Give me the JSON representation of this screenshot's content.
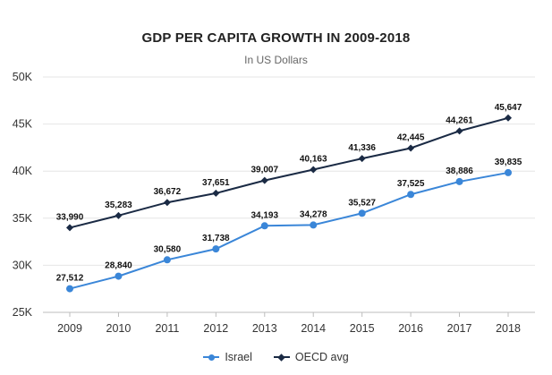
{
  "chart_data": {
    "type": "line",
    "title": "GDP PER CAPITA GROWTH IN 2009-2018",
    "subtitle": "In US Dollars",
    "xlabel": "",
    "ylabel": "",
    "categories": [
      "2009",
      "2010",
      "2011",
      "2012",
      "2013",
      "2014",
      "2015",
      "2016",
      "2017",
      "2018"
    ],
    "ylim": [
      25000,
      50000
    ],
    "yticks": [
      25000,
      30000,
      35000,
      40000,
      45000,
      50000
    ],
    "ytick_labels": [
      "25K",
      "30K",
      "35K",
      "40K",
      "45K",
      "50K"
    ],
    "grid": true,
    "legend_position": "bottom",
    "series": [
      {
        "name": "Israel",
        "color": "#3a86d8",
        "marker": "circle",
        "values": [
          27512,
          28840,
          30580,
          31738,
          34193,
          34278,
          35527,
          37525,
          38886,
          39835
        ],
        "labels": [
          "27,512",
          "28,840",
          "30,580",
          "31,738",
          "34,193",
          "34,278",
          "35,527",
          "37,525",
          "38,886",
          "39,835"
        ]
      },
      {
        "name": "OECD avg",
        "color": "#1a2a44",
        "marker": "diamond",
        "values": [
          33990,
          35283,
          36672,
          37651,
          39007,
          40163,
          41336,
          42445,
          44261,
          45647
        ],
        "labels": [
          "33,990",
          "35,283",
          "36,672",
          "37,651",
          "39,007",
          "40,163",
          "41,336",
          "42,445",
          "44,261",
          "45,647"
        ]
      }
    ]
  }
}
